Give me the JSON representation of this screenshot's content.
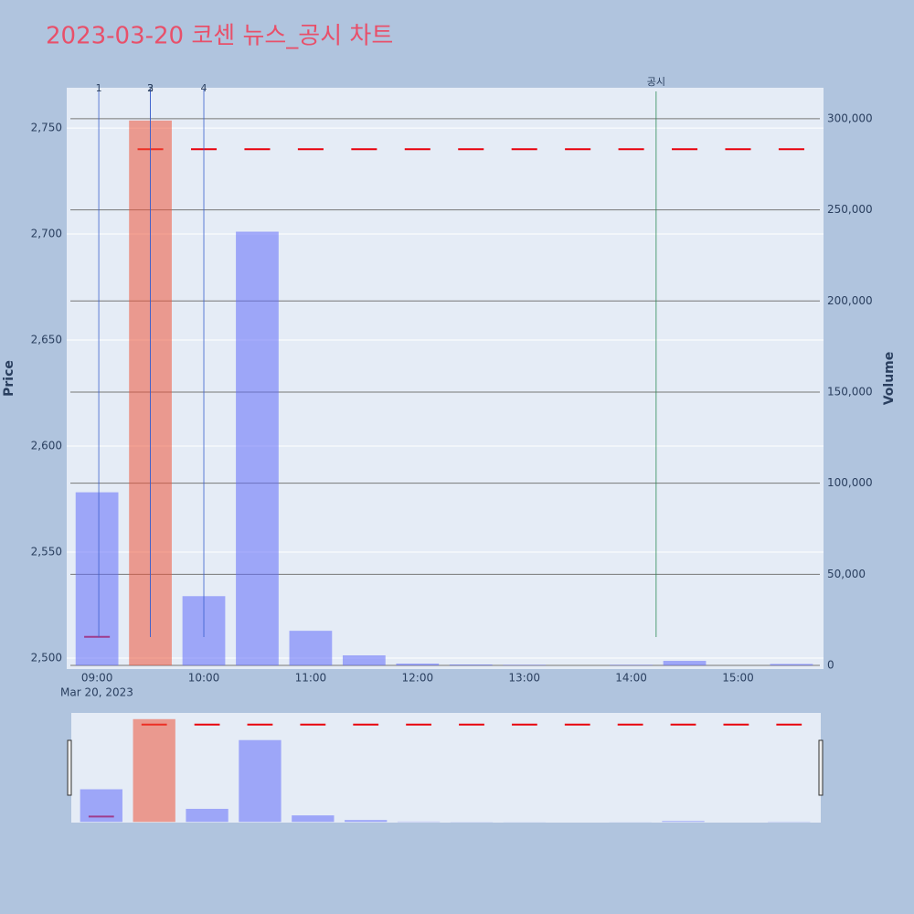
{
  "chart_data": {
    "type": "bar",
    "title": "2023-03-20 코센 뉴스_공시 차트",
    "title_color": "#e8506a",
    "x": [
      "09:00",
      "09:30",
      "10:00",
      "10:30",
      "11:00",
      "11:30",
      "12:00",
      "12:30",
      "13:00",
      "13:30",
      "14:00",
      "14:30",
      "15:00",
      "15:30"
    ],
    "x_date_label": "Mar 20, 2023",
    "xlim": [
      "08:43",
      "15:48"
    ],
    "xticks": [
      "09:00",
      "10:00",
      "11:00",
      "12:00",
      "13:00",
      "14:00",
      "15:00"
    ],
    "ylabel": "Price",
    "ylim": [
      2494.8,
      2769
    ],
    "yticks": [
      {
        "value": 2500,
        "label": "2,500"
      },
      {
        "value": 2550,
        "label": "2,550"
      },
      {
        "value": 2600,
        "label": "2,600"
      },
      {
        "value": 2650,
        "label": "2,650"
      },
      {
        "value": 2700,
        "label": "2,700"
      },
      {
        "value": 2750,
        "label": "2,750"
      }
    ],
    "y2label": "Volume",
    "y2lim": [
      -2000,
      317000
    ],
    "y2ticks": [
      0,
      {
        "value": 50000,
        "label": "50,000"
      },
      {
        "value": 100000,
        "label": "100,000"
      },
      {
        "value": 150000,
        "label": "150,000"
      },
      {
        "value": 200000,
        "label": "200,000"
      },
      {
        "value": 250000,
        "label": "250,000"
      },
      {
        "value": 300000,
        "label": "300,000"
      }
    ],
    "grid": true,
    "bar_opacity": 0.55,
    "series": [
      {
        "type": "price",
        "color": "#e8000b",
        "values": [
          2510,
          2740,
          2740,
          2740,
          2740,
          2740,
          2740,
          2740,
          2740,
          2740,
          2740,
          2740,
          2740,
          2740
        ]
      },
      {
        "type": "volume",
        "axis": "y2",
        "colors": [
          "#636efa",
          "#ef553b",
          "#636efa",
          "#636efa",
          "#636efa",
          "#636efa",
          "#636efa",
          "#636efa",
          "#636efa",
          "#636efa",
          "#636efa",
          "#636efa",
          "#636efa",
          "#636efa"
        ],
        "values": [
          95000,
          299000,
          38000,
          238000,
          19000,
          5500,
          1000,
          500,
          300,
          0,
          300,
          2500,
          0,
          800
        ]
      }
    ],
    "annotations": [
      {
        "x": "09:01",
        "text": "1",
        "color": "#3a5fcd"
      },
      {
        "x": "09:30",
        "text": "2",
        "color": "#3a5fcd"
      },
      {
        "x": "09:30",
        "text": "3",
        "color": "#3a5fcd"
      },
      {
        "x": "10:00",
        "text": "4",
        "color": "#3a5fcd"
      },
      {
        "x": "14:14",
        "text": "공시",
        "color": "#2e8b57"
      }
    ]
  }
}
